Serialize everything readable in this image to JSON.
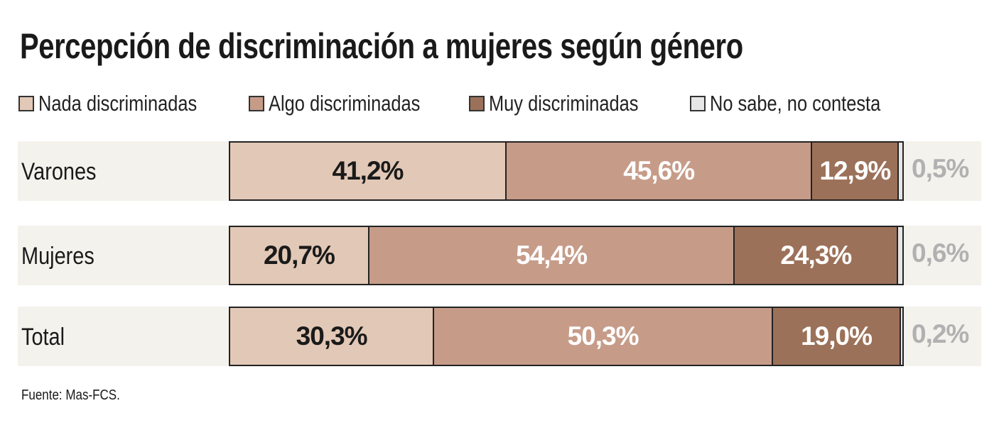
{
  "chart_data": {
    "type": "bar",
    "orientation": "horizontal",
    "stacked": true,
    "title": "Percepción de discriminación a mujeres según género",
    "categories": [
      "Varones",
      "Mujeres",
      "Total"
    ],
    "series": [
      {
        "name": "Nada discriminadas",
        "values": [
          41.2,
          20.7,
          30.3
        ],
        "labels": [
          "41,2%",
          "20,7%",
          "30,3%"
        ],
        "color": "#e2c8b6",
        "text_color": "#1a1a1a"
      },
      {
        "name": "Algo discriminadas",
        "values": [
          45.6,
          54.4,
          50.3
        ],
        "labels": [
          "45,6%",
          "54,4%",
          "50,3%"
        ],
        "color": "#c69c89",
        "text_color": "#ffffff"
      },
      {
        "name": "Muy discriminadas",
        "values": [
          12.9,
          24.3,
          19.0
        ],
        "labels": [
          "12,9%",
          "24,3%",
          "19,0%"
        ],
        "color": "#9c7159",
        "text_color": "#ffffff"
      },
      {
        "name": "No sabe, no contesta",
        "values": [
          0.5,
          0.6,
          0.2
        ],
        "labels": [
          "0,5%",
          "0,6%",
          "0,2%"
        ],
        "color": "#e6e6e6",
        "text_color": "#b1b1b1"
      }
    ],
    "source": "Fuente: Mas-FCS.",
    "legend_position": "top"
  }
}
